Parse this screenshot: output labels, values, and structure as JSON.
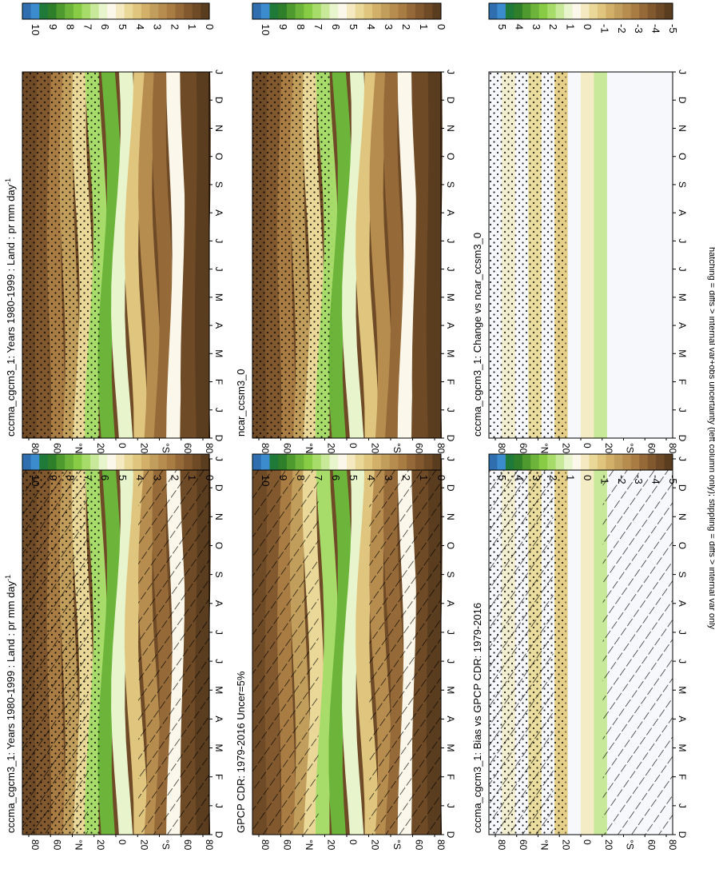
{
  "figure": {
    "footnote": "hatching = diffs > internal var+obs uncertainty (left column only); stippling = diffs > internal var only"
  },
  "palette": {
    "brown_to_green": [
      "#5a3c1e",
      "#6e4a26",
      "#82592f",
      "#966a38",
      "#a97c44",
      "#b68c4f",
      "#c29e5c",
      "#d2b06a",
      "#dfc57e",
      "#ead898",
      "#f4e9c0",
      "#fbf7ea",
      "#e8f4cc",
      "#c9e99a",
      "#a7dc6a",
      "#88cc45",
      "#6cb43a",
      "#4e9a2e",
      "#2e7e2a",
      "#1f7a3a",
      "#3b8ccf",
      "#2f6fb0"
    ],
    "lat_bands": [
      "dark",
      "dark",
      "mid",
      "light",
      "green",
      "green",
      "light",
      "mid",
      "mid",
      "pale",
      "white",
      "dark",
      "dark"
    ]
  },
  "chart_data": [
    {
      "type": "heatmap",
      "panel": "top-left",
      "title": "cccma_cgcm3_1: Years 1980-1999 : Land : pr mm day",
      "title_sup": "-1",
      "x_ticks": [
        "D",
        "J",
        "F",
        "M",
        "A",
        "M",
        "J",
        "J",
        "A",
        "S",
        "O",
        "N",
        "D",
        "J"
      ],
      "y_ticks": [
        "80",
        "60",
        "40",
        "20",
        "0",
        "20",
        "40",
        "60",
        "80"
      ],
      "y_tick_labels": [
        "80",
        "60",
        "°N",
        "20",
        "0",
        "20",
        "°S",
        "60",
        "80"
      ],
      "ylim": [
        -90,
        90
      ],
      "colorbar_ticks": [
        "10",
        "9",
        "8",
        "7",
        "6",
        "5",
        "4",
        "3",
        "2",
        "1",
        "0"
      ],
      "colorbar_range": [
        0,
        10
      ],
      "overlay": "hatching+stippling",
      "units": "mm day-1"
    },
    {
      "type": "heatmap",
      "panel": "top-right",
      "title": "cccma_cgcm3_1: Years 1980-1999 : Land : pr mm day",
      "title_sup": "-1",
      "x_ticks": [
        "D",
        "J",
        "F",
        "M",
        "A",
        "M",
        "J",
        "J",
        "A",
        "S",
        "O",
        "N",
        "D",
        "J"
      ],
      "y_tick_labels": [
        "80",
        "60",
        "°N",
        "20",
        "0",
        "20",
        "°S",
        "60",
        "80"
      ],
      "colorbar_ticks": [
        "10",
        "9",
        "8",
        "7",
        "6",
        "5",
        "4",
        "3",
        "2",
        "1",
        "0"
      ],
      "colorbar_range": [
        0,
        10
      ],
      "overlay": "stippling"
    },
    {
      "type": "heatmap",
      "panel": "middle-left",
      "title": "GPCP CDR: 1979-2016 Uncer=5%",
      "x_ticks": [
        "D",
        "J",
        "F",
        "M",
        "A",
        "M",
        "J",
        "J",
        "A",
        "S",
        "O",
        "N",
        "D",
        "J"
      ],
      "y_tick_labels": [
        "80",
        "60",
        "°N",
        "20",
        "0",
        "20",
        "°S",
        "60",
        "80"
      ],
      "colorbar_ticks": [
        "10",
        "9",
        "8",
        "7",
        "6",
        "5",
        "4",
        "3",
        "2",
        "1",
        "0"
      ],
      "colorbar_range": [
        0,
        10
      ],
      "overlay": "hatching"
    },
    {
      "type": "heatmap",
      "panel": "middle-right",
      "title": "ncar_ccsm3_0",
      "x_ticks": [
        "D",
        "J",
        "F",
        "M",
        "A",
        "M",
        "J",
        "J",
        "A",
        "S",
        "O",
        "N",
        "D",
        "J"
      ],
      "y_tick_labels": [
        "80",
        "60",
        "°N",
        "20",
        "0",
        "20",
        "°S",
        "60",
        "80"
      ],
      "colorbar_ticks": [
        "10",
        "9",
        "8",
        "7",
        "6",
        "5",
        "4",
        "3",
        "2",
        "1",
        "0"
      ],
      "colorbar_range": [
        0,
        10
      ],
      "overlay": "stippling"
    },
    {
      "type": "heatmap",
      "panel": "bottom-left",
      "title": "cccma_cgcm3_1: Bias vs GPCP CDR: 1979-2016",
      "x_ticks": [
        "D",
        "J",
        "F",
        "M",
        "A",
        "M",
        "J",
        "J",
        "A",
        "S",
        "O",
        "N",
        "D",
        "J"
      ],
      "y_tick_labels": [
        "80",
        "60",
        "°N",
        "20",
        "0",
        "20",
        "°S",
        "60",
        "80"
      ],
      "colorbar_ticks": [
        "5",
        "4",
        "3",
        "2",
        "1",
        "0",
        "-1",
        "-2",
        "-3",
        "-4",
        "-5"
      ],
      "colorbar_range": [
        -5,
        5
      ],
      "overlay": "hatching+stippling"
    },
    {
      "type": "heatmap",
      "panel": "bottom-right",
      "title": "cccma_cgcm3_1: Change vs ncar_ccsm3_0",
      "x_ticks": [
        "D",
        "J",
        "F",
        "M",
        "A",
        "M",
        "J",
        "J",
        "A",
        "S",
        "O",
        "N",
        "D",
        "J"
      ],
      "y_tick_labels": [
        "80",
        "60",
        "°N",
        "20",
        "0",
        "20",
        "°S",
        "60",
        "80"
      ],
      "colorbar_ticks": [
        "5",
        "4",
        "3",
        "2",
        "1",
        "0",
        "-1",
        "-2",
        "-3",
        "-4",
        "-5"
      ],
      "colorbar_range": [
        -5,
        5
      ],
      "overlay": "stippling"
    }
  ]
}
